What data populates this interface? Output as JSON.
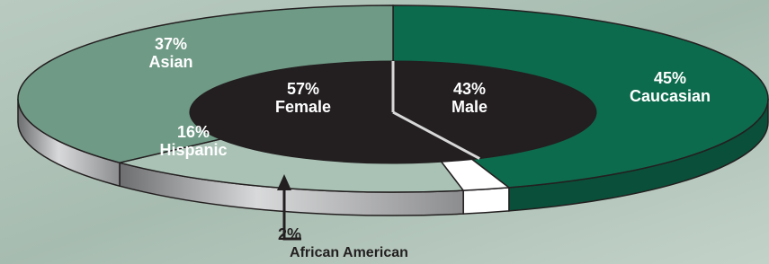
{
  "chart_data": [
    {
      "type": "pie",
      "categories": [
        "Caucasian",
        "African American",
        "Hispanic",
        "Asian"
      ],
      "values": [
        45,
        2,
        16,
        37
      ],
      "value_labels": [
        "45%",
        "2%",
        "16%",
        "37%"
      ],
      "colors": [
        "#0d6b4d",
        "#ffffff",
        "#a9c2b5",
        "#6f9a86"
      ]
    },
    {
      "type": "pie",
      "categories": [
        "Male",
        "Female"
      ],
      "values": [
        43,
        57
      ],
      "value_labels": [
        "43%",
        "57%"
      ],
      "colors": [
        "#231f20",
        "#231f20"
      ]
    }
  ]
}
